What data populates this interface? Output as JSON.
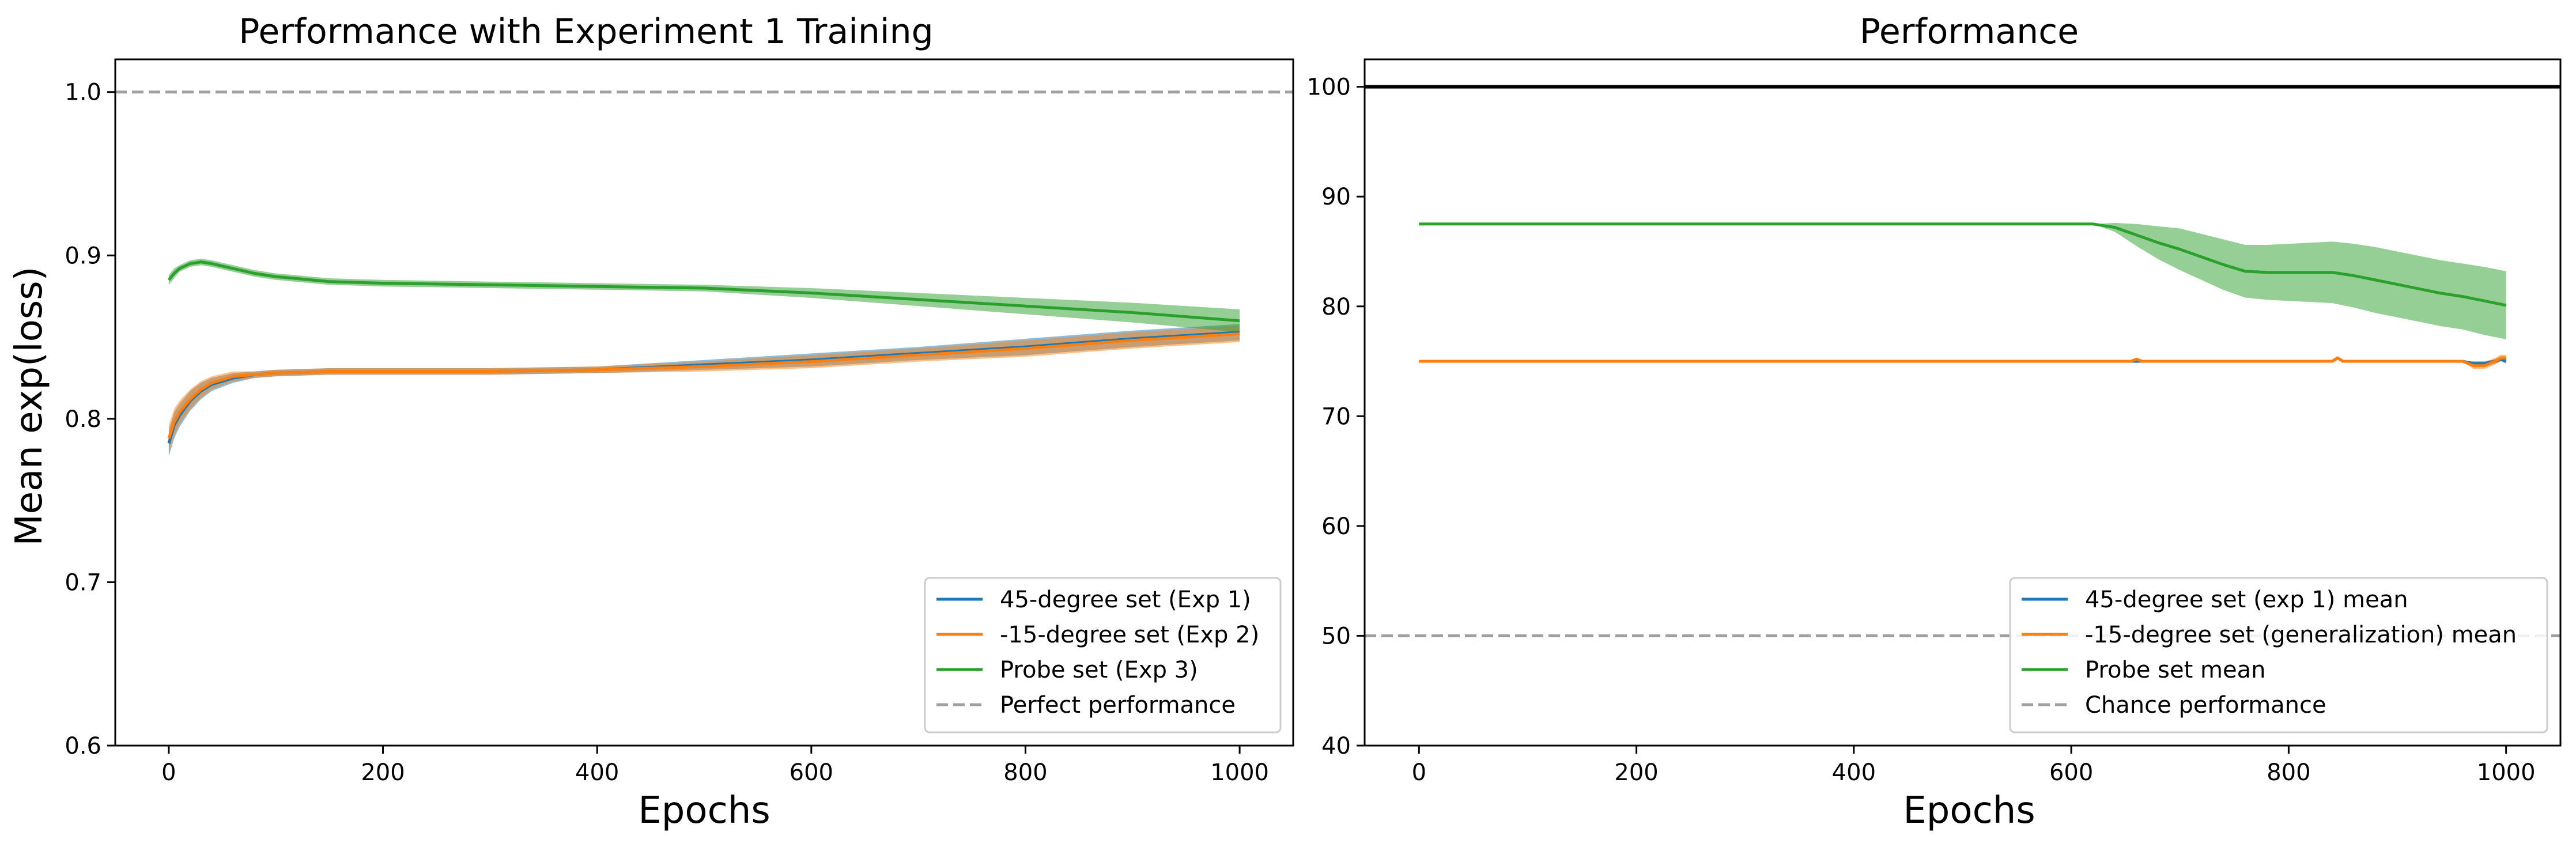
{
  "chart_data": [
    {
      "type": "line",
      "title": "Performance with Experiment 1 Training",
      "xlabel": "Epochs",
      "ylabel": "Mean exp(loss)",
      "xlim": [
        -50,
        1050
      ],
      "ylim": [
        0.6,
        1.02
      ],
      "xticks": [
        0,
        200,
        400,
        600,
        800,
        1000
      ],
      "yticks": [
        0.6,
        0.7,
        0.8,
        0.9,
        1.0
      ],
      "xtick_labels": [
        "0",
        "200",
        "400",
        "600",
        "800",
        "1000"
      ],
      "ytick_labels": [
        "0.6",
        "0.7",
        "0.8",
        "0.9",
        "1.0"
      ],
      "grid": false,
      "legend_position": "lower-right",
      "series": [
        {
          "name": "45-degree set (Exp 1)",
          "color": "#1f77b4",
          "x": [
            0,
            5,
            10,
            20,
            30,
            40,
            60,
            80,
            100,
            150,
            200,
            300,
            400,
            500,
            600,
            700,
            800,
            900,
            1000
          ],
          "y": [
            0.785,
            0.796,
            0.802,
            0.811,
            0.817,
            0.821,
            0.825,
            0.827,
            0.828,
            0.829,
            0.829,
            0.829,
            0.83,
            0.833,
            0.836,
            0.84,
            0.844,
            0.849,
            0.853
          ],
          "band": [
            0.008,
            0.008,
            0.007,
            0.006,
            0.005,
            0.004,
            0.003,
            0.002,
            0.002,
            0.002,
            0.002,
            0.002,
            0.002,
            0.003,
            0.004,
            0.004,
            0.005,
            0.005,
            0.005
          ]
        },
        {
          "name": "-15-degree set (Exp 2)",
          "color": "#ff7f0e",
          "x": [
            0,
            5,
            10,
            20,
            30,
            40,
            60,
            80,
            100,
            150,
            200,
            300,
            400,
            500,
            600,
            700,
            800,
            900,
            1000
          ],
          "y": [
            0.788,
            0.798,
            0.804,
            0.812,
            0.818,
            0.822,
            0.826,
            0.827,
            0.828,
            0.829,
            0.829,
            0.829,
            0.83,
            0.832,
            0.835,
            0.839,
            0.843,
            0.848,
            0.852
          ],
          "band": [
            0.008,
            0.008,
            0.007,
            0.006,
            0.005,
            0.004,
            0.003,
            0.002,
            0.002,
            0.002,
            0.002,
            0.002,
            0.002,
            0.003,
            0.004,
            0.004,
            0.005,
            0.005,
            0.005
          ]
        },
        {
          "name": "Probe set (Exp 3)",
          "color": "#2ca02c",
          "x": [
            0,
            5,
            10,
            20,
            30,
            40,
            60,
            80,
            100,
            150,
            200,
            300,
            400,
            500,
            600,
            700,
            800,
            900,
            1000
          ],
          "y": [
            0.885,
            0.889,
            0.892,
            0.895,
            0.896,
            0.895,
            0.892,
            0.889,
            0.887,
            0.884,
            0.883,
            0.882,
            0.881,
            0.88,
            0.877,
            0.873,
            0.869,
            0.865,
            0.86
          ],
          "band": [
            0.003,
            0.003,
            0.002,
            0.002,
            0.002,
            0.002,
            0.002,
            0.002,
            0.002,
            0.002,
            0.002,
            0.002,
            0.002,
            0.002,
            0.003,
            0.004,
            0.005,
            0.006,
            0.007
          ]
        }
      ],
      "reference_lines": [
        {
          "name": "Perfect performance",
          "y": 1.0,
          "color": "#a0a0a0",
          "dashed": true
        }
      ]
    },
    {
      "type": "line",
      "title": "Performance",
      "xlabel": "Epochs",
      "ylabel": "",
      "xlim": [
        -50,
        1050
      ],
      "ylim": [
        40,
        102.5
      ],
      "xticks": [
        0,
        200,
        400,
        600,
        800,
        1000
      ],
      "yticks": [
        40,
        50,
        60,
        70,
        80,
        90,
        100
      ],
      "xtick_labels": [
        "0",
        "200",
        "400",
        "600",
        "800",
        "1000"
      ],
      "ytick_labels": [
        "40",
        "50",
        "60",
        "70",
        "80",
        "90",
        "100"
      ],
      "grid": false,
      "legend_position": "lower-right",
      "series": [
        {
          "name": "45-degree set (exp 1) mean",
          "color": "#1f77b4",
          "x": [
            0,
            600,
            800,
            840,
            845,
            850,
            900,
            960,
            970,
            980,
            990,
            995,
            1000
          ],
          "y": [
            75,
            75,
            75,
            75,
            75.3,
            75,
            75,
            75,
            74.8,
            74.8,
            75,
            75.2,
            75
          ],
          "band": [
            0,
            0,
            0,
            0,
            0,
            0,
            0,
            0,
            0.2,
            0.2,
            0.2,
            0.2,
            0.2
          ]
        },
        {
          "name": "-15-degree set (generalization) mean",
          "color": "#ff7f0e",
          "x": [
            0,
            600,
            655,
            660,
            665,
            800,
            840,
            845,
            850,
            900,
            960,
            970,
            980,
            990,
            995,
            1000
          ],
          "y": [
            75,
            75,
            75,
            75.2,
            75,
            75,
            75,
            75.3,
            75,
            75,
            75,
            74.6,
            74.6,
            75,
            75.3,
            75.3
          ],
          "band": [
            0,
            0,
            0,
            0,
            0,
            0,
            0,
            0,
            0,
            0,
            0,
            0.3,
            0.3,
            0.3,
            0.3,
            0.3
          ]
        },
        {
          "name": "Probe set mean",
          "color": "#2ca02c",
          "x": [
            0,
            600,
            620,
            640,
            660,
            680,
            700,
            720,
            740,
            760,
            780,
            800,
            820,
            840,
            860,
            880,
            900,
            920,
            940,
            960,
            980,
            1000
          ],
          "y": [
            87.5,
            87.5,
            87.5,
            87.2,
            86.5,
            85.8,
            85.2,
            84.5,
            83.8,
            83.2,
            83.1,
            83.1,
            83.1,
            83.1,
            82.8,
            82.4,
            82.0,
            81.6,
            81.2,
            80.9,
            80.5,
            80.1
          ],
          "band": [
            0,
            0,
            0,
            0.4,
            1.0,
            1.5,
            1.9,
            2.1,
            2.3,
            2.4,
            2.5,
            2.6,
            2.7,
            2.8,
            2.9,
            3.0,
            3.0,
            3.0,
            3.0,
            3.0,
            3.1,
            3.1
          ]
        }
      ],
      "reference_lines": [
        {
          "name": "",
          "y": 100,
          "color": "#000000",
          "dashed": false
        },
        {
          "name": "Chance performance",
          "y": 50,
          "color": "#a0a0a0",
          "dashed": true
        }
      ]
    }
  ]
}
